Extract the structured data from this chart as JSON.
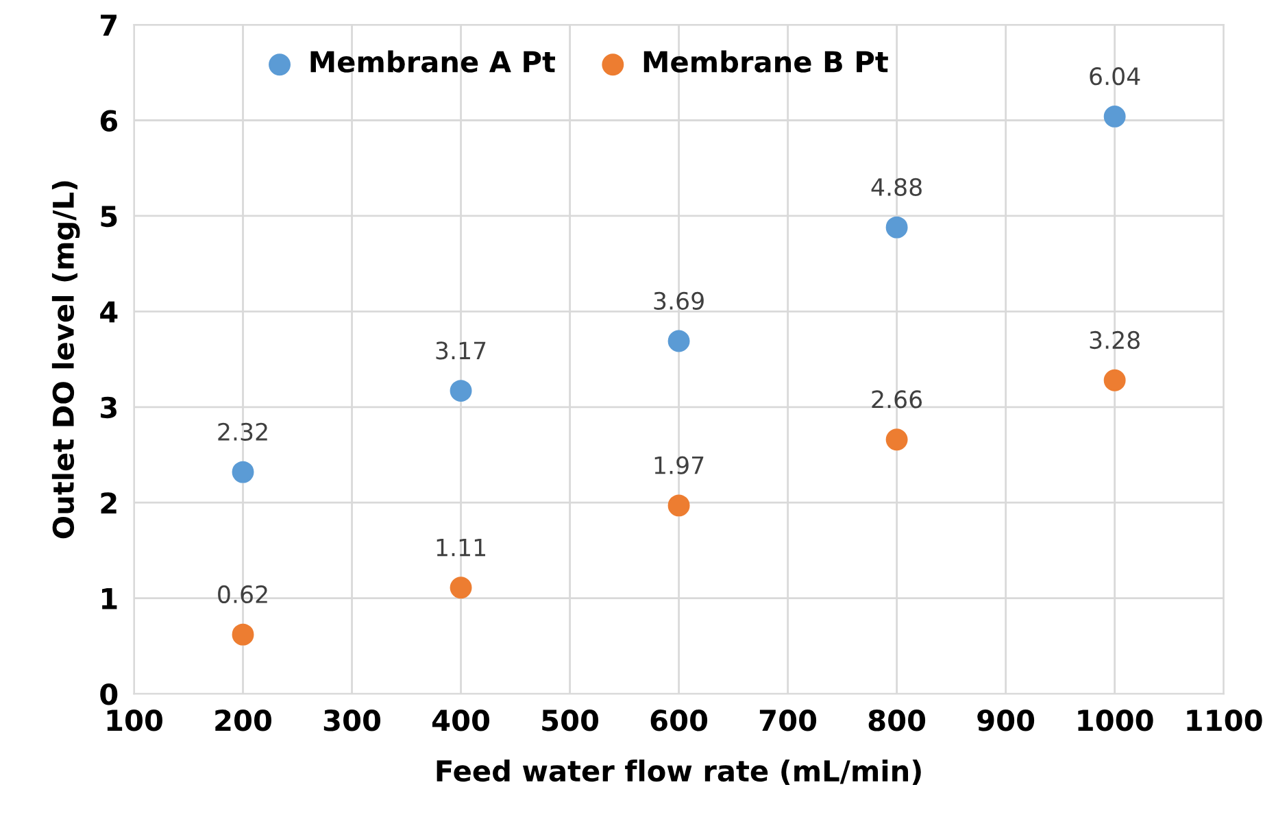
{
  "chart_data": {
    "type": "scatter",
    "xlabel": "Feed water flow rate (mL/min)",
    "ylabel": "Outlet DO level (mg/L)",
    "x": [
      200,
      400,
      600,
      800,
      1000
    ],
    "series": [
      {
        "name": "Membrane A Pt",
        "color": "#5b9bd5",
        "values": [
          2.32,
          3.17,
          3.69,
          4.88,
          6.04
        ]
      },
      {
        "name": "Membrane B Pt",
        "color": "#ed7d31",
        "values": [
          0.62,
          1.11,
          1.97,
          2.66,
          3.28
        ]
      }
    ],
    "xlim": [
      100,
      1100
    ],
    "xticks": [
      100,
      200,
      300,
      400,
      500,
      600,
      700,
      800,
      900,
      1000,
      1100
    ],
    "ylim": [
      0,
      7
    ],
    "yticks": [
      0,
      1,
      2,
      3,
      4,
      5,
      6,
      7
    ],
    "grid": true,
    "legend": "top",
    "marker": "circle",
    "data_labels": true
  }
}
